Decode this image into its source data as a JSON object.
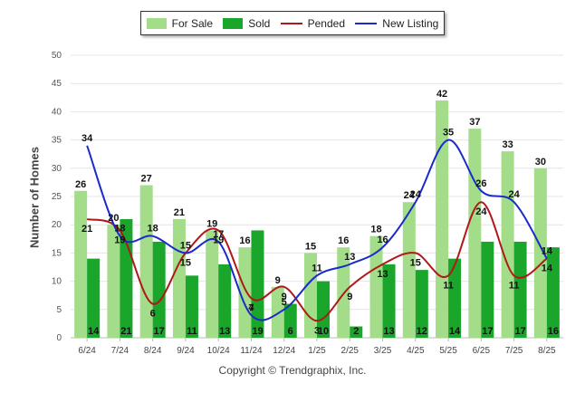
{
  "chart_data": {
    "type": "bar",
    "categories": [
      "6/24",
      "7/24",
      "8/24",
      "9/24",
      "10/24",
      "11/24",
      "12/24",
      "1/25",
      "2/25",
      "3/25",
      "4/25",
      "5/25",
      "6/25",
      "7/25",
      "8/25"
    ],
    "series": [
      {
        "name": "For Sale",
        "kind": "bar",
        "color": "#a3dd8a",
        "values": [
          26,
          20,
          27,
          21,
          19,
          16,
          9,
          15,
          16,
          18,
          24,
          42,
          37,
          33,
          30
        ]
      },
      {
        "name": "Sold",
        "kind": "bar",
        "color": "#1aa52b",
        "values": [
          14,
          21,
          17,
          11,
          13,
          19,
          6,
          10,
          2,
          13,
          12,
          14,
          17,
          17,
          16
        ]
      },
      {
        "name": "Pended",
        "kind": "line",
        "color": "#b01818",
        "values": [
          21,
          19,
          6,
          15,
          19,
          7,
          9,
          3,
          9,
          13,
          15,
          11,
          24,
          11,
          14
        ]
      },
      {
        "name": "New Listing",
        "kind": "line",
        "color": "#1a2acb",
        "values": [
          34,
          18,
          18,
          15,
          17,
          4,
          5,
          11,
          13,
          16,
          24,
          35,
          26,
          24,
          14
        ]
      }
    ],
    "xlabel": "",
    "ylabel": "Number of Homes",
    "ylim": [
      0,
      50
    ],
    "yticks": [
      0,
      5,
      10,
      15,
      20,
      25,
      30,
      35,
      40,
      45,
      50
    ],
    "grid": true,
    "legend": "top-center"
  },
  "footer": {
    "copyright": "Copyright © Trendgraphix, Inc."
  }
}
